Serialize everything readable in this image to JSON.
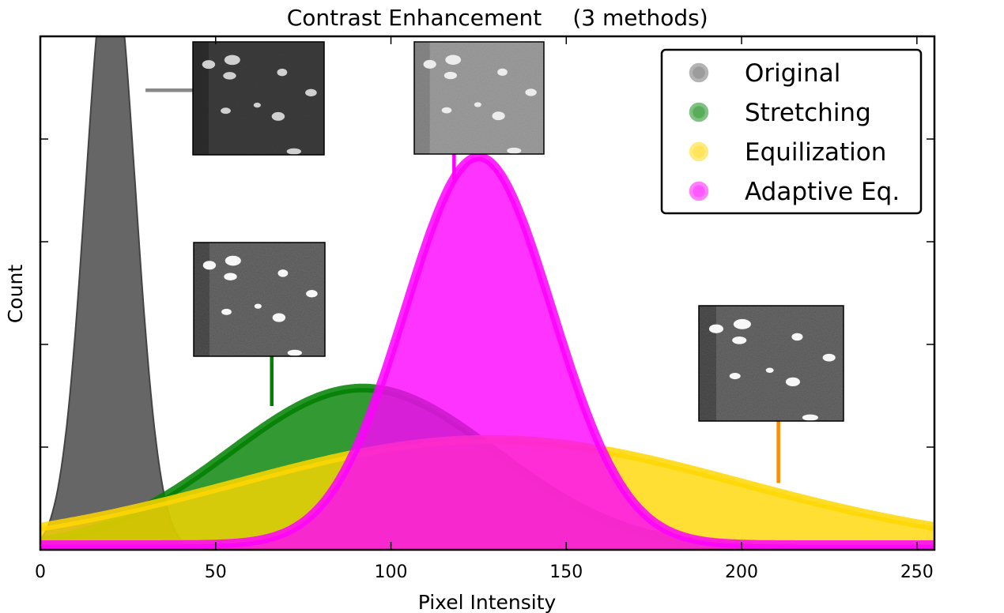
{
  "chart_data": {
    "type": "area",
    "title": "Contrast Enhancement",
    "subtitle": "(3 methods)",
    "xlabel": "Pixel Intensity",
    "ylabel": "Count",
    "xlim": [
      0,
      255
    ],
    "ylim": [
      0,
      1
    ],
    "x_ticks": [
      0,
      50,
      100,
      150,
      200,
      250
    ],
    "x_tick_labels": [
      "0",
      "50",
      "100",
      "150",
      "200",
      "250"
    ],
    "y_tick_labels": [],
    "grid": false,
    "legend_position": "top-right",
    "series": [
      {
        "name": "Original",
        "color": "#666666",
        "mean": 20,
        "sd": 7,
        "peak": 1.18,
        "floor": 0.0
      },
      {
        "name": "Stretching",
        "color": "#008000",
        "mean": 92,
        "sd": 38,
        "peak": 0.315,
        "floor": 0.0
      },
      {
        "name": "Equilization",
        "color": "#ffd700",
        "mean": 128,
        "sd": 72,
        "peak": 0.215,
        "floor": 0.0
      },
      {
        "name": "Adaptive Eq.",
        "color": "#ff00ff",
        "mean": 125,
        "sd": 21,
        "peak": 0.755,
        "floor": 0.01
      }
    ],
    "insets": [
      {
        "series": "Original",
        "pointer_x": 30,
        "pointer_y": 0.895,
        "variant": "dark"
      },
      {
        "series": "Adaptive Eq.",
        "pointer_x": 118,
        "pointer_y": 0.715,
        "variant": "gray"
      },
      {
        "series": "Stretching",
        "pointer_x": 66,
        "pointer_y": 0.28,
        "variant": "contrast"
      },
      {
        "series": "Equilization",
        "pointer_x": 210.5,
        "pointer_y": 0.13,
        "variant": "contrast"
      }
    ]
  }
}
